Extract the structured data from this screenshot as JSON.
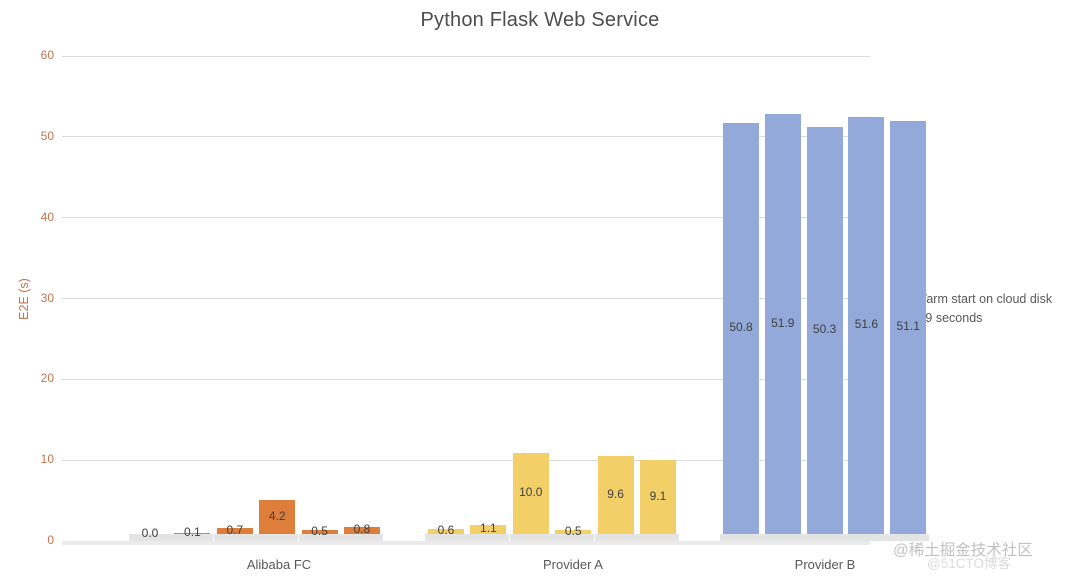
{
  "title": "Python Flask Web Service",
  "chart_data": {
    "type": "bar",
    "title": "Python Flask Web Service",
    "xlabel": "",
    "ylabel": "E2E (s)",
    "ylim": [
      0,
      60
    ],
    "yticks": [
      0,
      10,
      20,
      30,
      40,
      50,
      60
    ],
    "grid": true,
    "stacked_base": {
      "name": "Warm start on cloud disk 0.9 seconds",
      "value": 0.9,
      "color": "#e4e4e4"
    },
    "groups": [
      {
        "category": "Alibaba FC",
        "color": "#dd7e3b",
        "values": [
          0.0,
          0.1,
          0.7,
          4.2,
          0.5,
          0.8
        ],
        "labels": [
          "0.0",
          "0.1",
          "0.7",
          "4.2",
          "0.5",
          "0.8"
        ]
      },
      {
        "category": "Provider A",
        "color": "#f3cf68",
        "values": [
          0.6,
          1.1,
          10.0,
          0.5,
          9.6,
          9.1
        ],
        "labels": [
          "0.6",
          "1.1",
          "10.0",
          "0.5",
          "9.6",
          "9.1"
        ]
      },
      {
        "category": "Provider B",
        "color": "#92a9da",
        "values": [
          50.8,
          51.9,
          50.3,
          51.6,
          51.1
        ],
        "labels": [
          "50.8",
          "51.9",
          "50.3",
          "51.6",
          "51.1"
        ]
      }
    ],
    "legend": {
      "position": "right",
      "swatch_color": "#d9d9d9",
      "lines": [
        "Warm start on cloud disk",
        "0.9 seconds"
      ]
    }
  },
  "axis": {
    "tick_color": "#c4734e",
    "category_label_color": "#595959",
    "grid_color": "#dcdcdc"
  },
  "watermark": {
    "primary": "@稀土掘金技术社区",
    "secondary": "@51CTO博客"
  }
}
